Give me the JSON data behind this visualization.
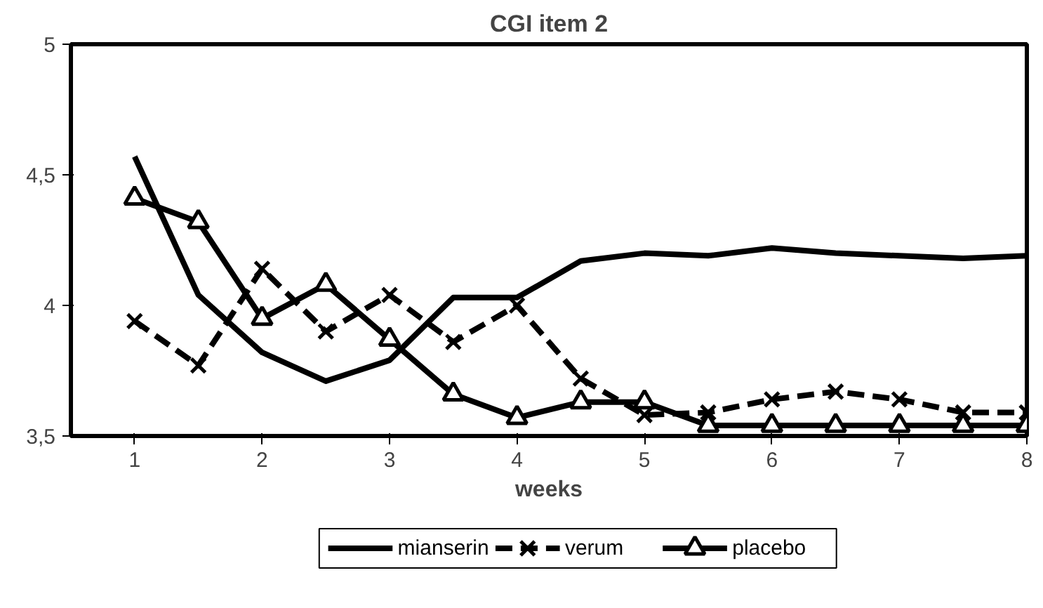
{
  "chart_data": {
    "type": "line",
    "title": "CGI item 2",
    "xlabel": "weeks",
    "x": [
      1,
      1.5,
      2,
      2.5,
      3,
      3.5,
      4,
      4.5,
      5,
      5.5,
      6,
      6.5,
      7,
      7.5,
      8
    ],
    "series": [
      {
        "name": "mianserin",
        "color": "#000000",
        "marker": "none",
        "line_style": "solid",
        "values": [
          4.57,
          4.04,
          3.82,
          3.71,
          3.79,
          4.03,
          4.03,
          4.17,
          4.2,
          4.19,
          4.22,
          4.2,
          4.19,
          4.18,
          4.19
        ]
      },
      {
        "name": "verum",
        "color": "#000000",
        "marker": "cross",
        "line_style": "dashed",
        "values": [
          3.94,
          3.77,
          4.14,
          3.9,
          4.04,
          3.86,
          4.0,
          3.72,
          3.58,
          3.59,
          3.64,
          3.67,
          3.64,
          3.59,
          3.59
        ]
      },
      {
        "name": "placebo",
        "color": "#000000",
        "marker": "triangle",
        "line_style": "solid",
        "values": [
          4.41,
          4.32,
          3.95,
          4.08,
          3.87,
          3.66,
          3.57,
          3.63,
          3.63,
          3.54,
          3.54,
          3.54,
          3.54,
          3.54,
          3.54
        ]
      }
    ],
    "xlim": [
      0.5,
      8
    ],
    "xticks": [
      1,
      2,
      3,
      4,
      5,
      6,
      7,
      8
    ],
    "ylim": [
      3.5,
      5
    ],
    "yticks": [
      {
        "value": 3.5,
        "label": "3,5"
      },
      {
        "value": 4,
        "label": "4"
      },
      {
        "value": 4.5,
        "label": "4,5"
      },
      {
        "value": 5,
        "label": "5"
      }
    ],
    "grid": false,
    "legend": "bottom"
  }
}
